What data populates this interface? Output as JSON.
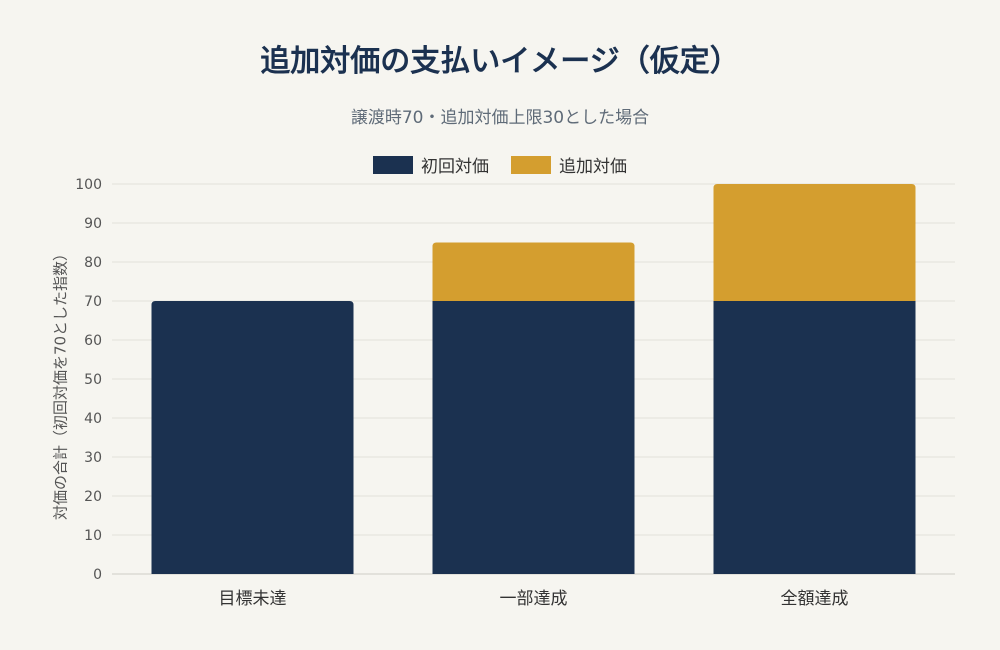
{
  "chart_data": {
    "type": "bar",
    "stacked": true,
    "title": "追加対価の支払いイメージ（仮定）",
    "subtitle": "譲渡時70・追加対価上限30とした場合",
    "xlabel": "",
    "ylabel": "対価の合計（初回対価を70とした指数）",
    "categories": [
      "目標未達",
      "一部達成",
      "全額達成"
    ],
    "series": [
      {
        "name": "初回対価",
        "values": [
          70,
          70,
          70
        ],
        "color": "#1b3150"
      },
      {
        "name": "追加対価",
        "values": [
          0,
          15,
          30
        ],
        "color": "#d49e2f"
      }
    ],
    "ylim": [
      0,
      100
    ],
    "yticks": [
      0,
      10,
      20,
      30,
      40,
      50,
      60,
      70,
      80,
      90,
      100
    ],
    "grid": true,
    "legend_position": "top-center"
  }
}
